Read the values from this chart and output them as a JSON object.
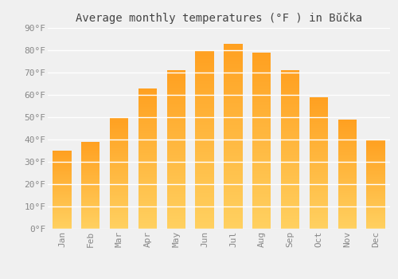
{
  "title": "Average monthly temperatures (°F ) in Bŭčka",
  "months": [
    "Jan",
    "Feb",
    "Mar",
    "Apr",
    "May",
    "Jun",
    "Jul",
    "Aug",
    "Sep",
    "Oct",
    "Nov",
    "Dec"
  ],
  "values": [
    35,
    39,
    50,
    63,
    71,
    80,
    83,
    79,
    71,
    59,
    49,
    40
  ],
  "bar_color_top": "#FFA020",
  "bar_color_bottom": "#FFD060",
  "background_color": "#f0f0f0",
  "grid_color": "#ffffff",
  "text_color": "#888888",
  "title_color": "#444444",
  "ylim": [
    0,
    90
  ],
  "yticks": [
    0,
    10,
    20,
    30,
    40,
    50,
    60,
    70,
    80,
    90
  ],
  "title_fontsize": 10,
  "tick_fontsize": 8,
  "bar_width": 0.65
}
